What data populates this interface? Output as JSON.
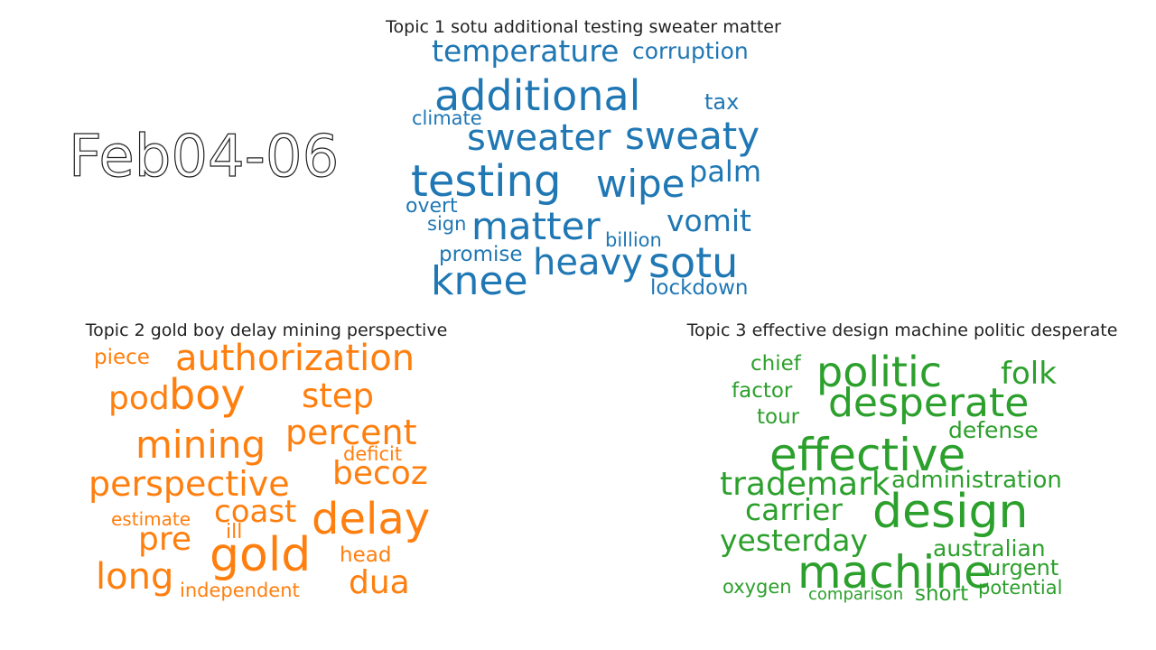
{
  "date_label": "Feb04-06",
  "topics": [
    {
      "title": "Topic 1 sotu additional testing sweater matter",
      "color": "#1f77b4",
      "words": [
        "temperature",
        "corruption",
        "additional",
        "tax",
        "climate",
        "sweater",
        "sweaty",
        "testing",
        "wipe",
        "palm",
        "overt",
        "sign",
        "matter",
        "vomit",
        "billion",
        "promise",
        "heavy",
        "sotu",
        "knee",
        "lockdown"
      ]
    },
    {
      "title": "Topic 2 gold boy delay mining perspective",
      "color": "#ff7f0e",
      "words": [
        "piece",
        "authorization",
        "pod",
        "boy",
        "step",
        "mining",
        "percent",
        "deficit",
        "perspective",
        "becoz",
        "estimate",
        "coast",
        "delay",
        "ill",
        "pre",
        "gold",
        "head",
        "long",
        "dua",
        "independent"
      ]
    },
    {
      "title": "Topic 3 effective design machine politic desperate",
      "color": "#2ca02c",
      "words": [
        "chief",
        "politic",
        "folk",
        "factor",
        "desperate",
        "tour",
        "defense",
        "effective",
        "trademark",
        "administration",
        "carrier",
        "design",
        "yesterday",
        "australian",
        "machine",
        "urgent",
        "oxygen",
        "comparison",
        "short",
        "potential"
      ]
    }
  ]
}
